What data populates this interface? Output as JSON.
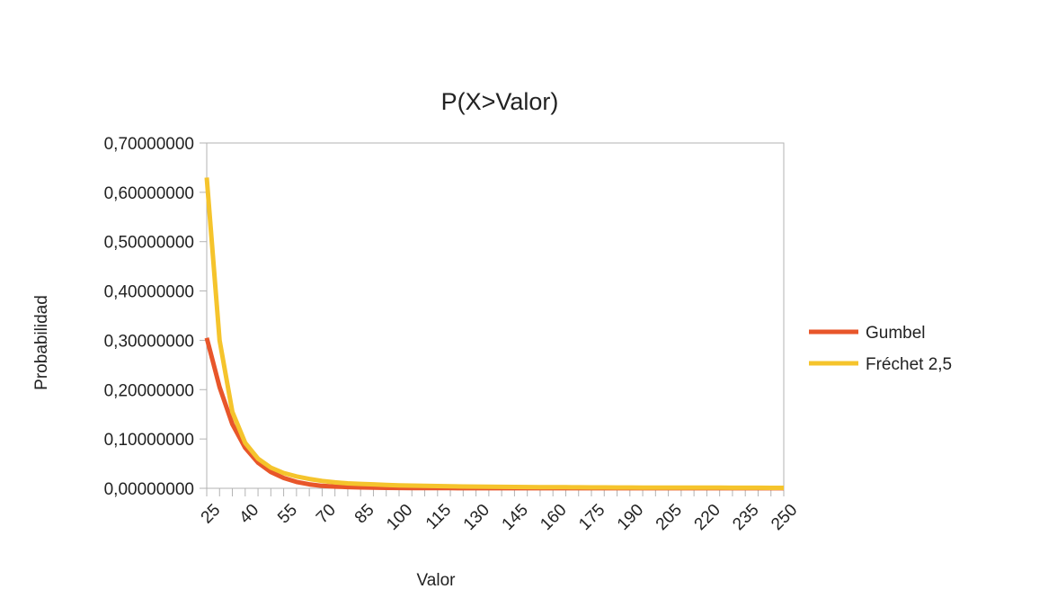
{
  "chart_data": {
    "type": "line",
    "title": "P(X>Valor)",
    "xlabel": "Valor",
    "ylabel": "Probabilidad",
    "x": [
      25,
      30,
      35,
      40,
      45,
      50,
      55,
      60,
      65,
      70,
      75,
      80,
      85,
      90,
      95,
      100,
      105,
      110,
      115,
      120,
      125,
      130,
      135,
      140,
      145,
      150,
      155,
      160,
      165,
      170,
      175,
      180,
      185,
      190,
      195,
      200,
      205,
      210,
      215,
      220,
      225,
      230,
      235,
      240,
      245,
      250
    ],
    "x_tick_labels": [
      "25",
      "40",
      "55",
      "70",
      "85",
      "100",
      "115",
      "130",
      "145",
      "160",
      "175",
      "190",
      "205",
      "220",
      "235",
      "250"
    ],
    "y_tick_labels": [
      "0,00000000",
      "0,10000000",
      "0,20000000",
      "0,30000000",
      "0,40000000",
      "0,50000000",
      "0,60000000",
      "0,70000000"
    ],
    "ylim": [
      0,
      0.7
    ],
    "grid": false,
    "legend_position": "right",
    "series": [
      {
        "name": "Gumbel",
        "color": "#e8562a",
        "values": [
          0.305,
          0.205,
          0.13,
          0.082,
          0.052,
          0.033,
          0.021,
          0.013,
          0.008,
          0.005,
          0.0035,
          0.0025,
          0.0018,
          0.0013,
          0.001,
          0.0008,
          0.0006,
          0.0005,
          0.0004,
          0.0003,
          0.0002,
          0.0002,
          0.0001,
          0.0001,
          0.0001,
          0.0001,
          0.0001,
          0.0001,
          0.0001,
          0.0001,
          0.0001,
          0.0001,
          0.0001,
          0.0001,
          0.0001,
          0.0001,
          0.0001,
          0.0001,
          0.0001,
          0.0001,
          0.0001,
          0.0001,
          0.0001,
          0.0001,
          0.0001,
          0.0001
        ]
      },
      {
        "name": "Fréchet 2,5",
        "color": "#f5c42c",
        "values": [
          0.63,
          0.3,
          0.155,
          0.092,
          0.06,
          0.042,
          0.031,
          0.024,
          0.019,
          0.015,
          0.012,
          0.01,
          0.009,
          0.008,
          0.007,
          0.006,
          0.0055,
          0.005,
          0.0045,
          0.004,
          0.0037,
          0.0034,
          0.0031,
          0.0029,
          0.0027,
          0.0025,
          0.0023,
          0.0022,
          0.0021,
          0.002,
          0.0019,
          0.0018,
          0.0017,
          0.0016,
          0.0015,
          0.0015,
          0.0014,
          0.0013,
          0.0013,
          0.0012,
          0.0012,
          0.0011,
          0.0011,
          0.0011,
          0.001,
          0.001
        ]
      }
    ]
  }
}
